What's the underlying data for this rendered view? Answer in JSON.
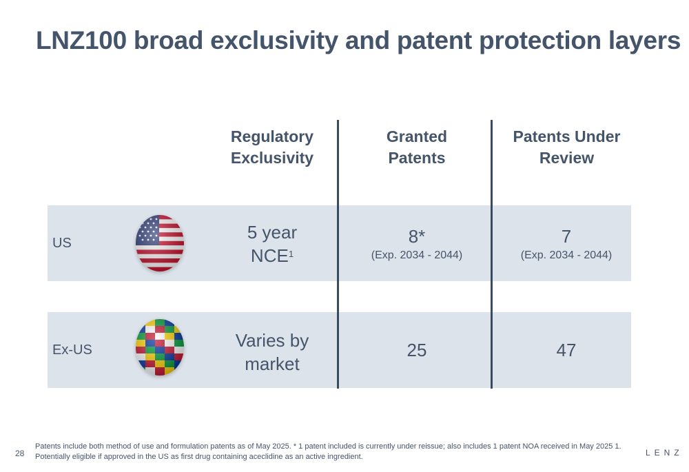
{
  "title": "LNZ100 broad exclusivity and patent protection layers",
  "columns": {
    "regulatory": "Regulatory Exclusivity",
    "granted": "Granted Patents",
    "review": "Patents Under Review"
  },
  "rows": [
    {
      "region": "US",
      "flag_icon": "us-flag-globe-icon",
      "regulatory_line1": "5 year",
      "regulatory_line2": "NCE",
      "regulatory_sup": "1",
      "granted": "8*",
      "granted_sub": "(Exp. 2034 - 2044)",
      "review": "7",
      "review_sub": "(Exp. 2034 - 2044)"
    },
    {
      "region": "Ex-US",
      "flag_icon": "world-flags-globe-icon",
      "regulatory_line1": "Varies by",
      "regulatory_line2": "market",
      "granted": "25",
      "review": "47"
    }
  ],
  "footnote": "Patents include both method of use and formulation patents as of May 2025. * 1 patent included is currently under reissue; also includes 1 patent NOA received in May 2025 1. Potentially eligible if approved in the US as first drug containing aceclidine as an active ingredient.",
  "page_number": "28",
  "logo_text": "LENZ",
  "colors": {
    "title": "#44546a",
    "band": "#dde3ea",
    "divider": "#3a4a63"
  }
}
